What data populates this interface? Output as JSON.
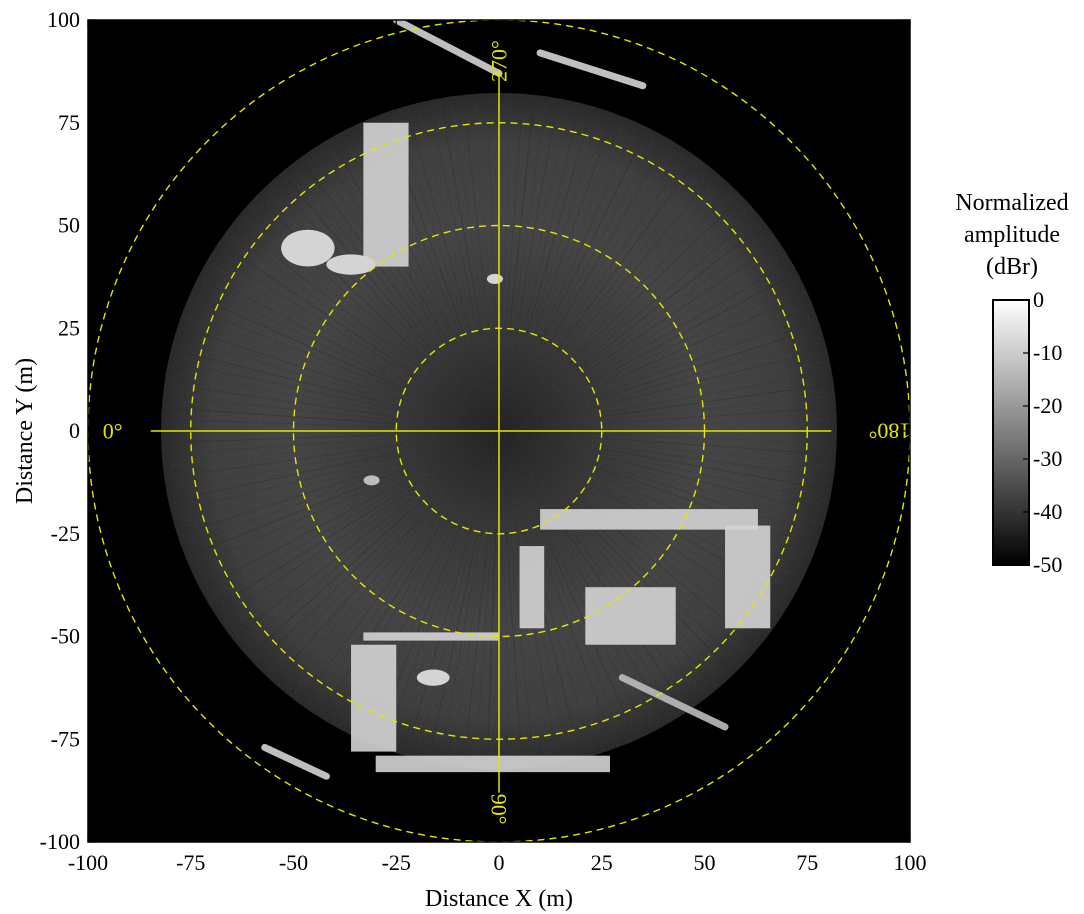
{
  "chart_data": {
    "type": "heatmap",
    "description_kind": "polar sonar intensity image in cartesian axes",
    "xlabel": "Distance X (m)",
    "ylabel": "Distance Y (m)",
    "xlim": [
      -100,
      100
    ],
    "ylim": [
      -100,
      100
    ],
    "x_ticks": [
      -100,
      -75,
      -50,
      -25,
      0,
      25,
      50,
      75,
      100
    ],
    "y_ticks": [
      -100,
      -75,
      -50,
      -25,
      0,
      25,
      50,
      75,
      100
    ],
    "x_tick_labels": [
      "-100",
      "-75",
      "-50",
      "-25",
      "0",
      "25",
      "50",
      "75",
      "100"
    ],
    "y_tick_labels": [
      "-100",
      "-75",
      "-50",
      "-25",
      "0",
      "25",
      "50",
      "75",
      "100"
    ],
    "range_rings_m": [
      25,
      50,
      75,
      100
    ],
    "angle_labels": [
      {
        "text": "0°",
        "angle_deg": 0,
        "rotation": 0
      },
      {
        "text": "90°",
        "angle_deg": 90,
        "rotation": 90
      },
      {
        "text": "180°",
        "angle_deg": 180,
        "rotation": 180
      },
      {
        "text": "270°",
        "angle_deg": 270,
        "rotation": 270
      }
    ],
    "overlay_color": "#e6e600",
    "background_color": "#000000",
    "colorbar": {
      "title": [
        "Normalized",
        "amplitude",
        "(dBr)"
      ],
      "range": [
        -50,
        0
      ],
      "ticks": [
        0,
        -10,
        -20,
        -30,
        -40,
        -50
      ],
      "tick_labels": [
        "0",
        "-10",
        "-20",
        "-30",
        "-40",
        "-50"
      ],
      "colormap": "gray"
    },
    "bright_features": [
      {
        "shape": "arc",
        "x": [
          -25,
          0
        ],
        "y": [
          100,
          87
        ],
        "amplitude_dbr": -5
      },
      {
        "shape": "arc",
        "x": [
          10,
          35
        ],
        "y": [
          92,
          84
        ],
        "amplitude_dbr": -5
      },
      {
        "shape": "block",
        "x": [
          -33,
          -22
        ],
        "y": [
          40,
          75
        ],
        "amplitude_dbr": -5
      },
      {
        "shape": "blob",
        "x": [
          -53,
          -40
        ],
        "y": [
          48,
          41
        ],
        "amplitude_dbr": -5
      },
      {
        "shape": "blob",
        "x": [
          -42,
          -30
        ],
        "y": [
          42,
          39
        ],
        "amplitude_dbr": -5
      },
      {
        "shape": "dot",
        "x": [
          -1,
          -1
        ],
        "y": [
          37,
          37
        ],
        "amplitude_dbr": -5
      },
      {
        "shape": "dot",
        "x": [
          -31,
          -31
        ],
        "y": [
          -12,
          -12
        ],
        "amplitude_dbr": -10
      },
      {
        "shape": "bar",
        "x": [
          -33,
          0
        ],
        "y": [
          -49,
          -51
        ],
        "amplitude_dbr": -5
      },
      {
        "shape": "bar",
        "x": [
          -30,
          27
        ],
        "y": [
          -79,
          -83
        ],
        "amplitude_dbr": -5
      },
      {
        "shape": "block",
        "x": [
          -36,
          -25
        ],
        "y": [
          -52,
          -78
        ],
        "amplitude_dbr": -5
      },
      {
        "shape": "block",
        "x": [
          5,
          11
        ],
        "y": [
          -28,
          -48
        ],
        "amplitude_dbr": -5
      },
      {
        "shape": "bar",
        "x": [
          10,
          63
        ],
        "y": [
          -19,
          -24
        ],
        "amplitude_dbr": -5
      },
      {
        "shape": "block",
        "x": [
          55,
          66
        ],
        "y": [
          -23,
          -48
        ],
        "amplitude_dbr": -5
      },
      {
        "shape": "block",
        "x": [
          21,
          43
        ],
        "y": [
          -38,
          -52
        ],
        "amplitude_dbr": -5
      },
      {
        "shape": "blob",
        "x": [
          -20,
          -12
        ],
        "y": [
          -59,
          -61
        ],
        "amplitude_dbr": -5
      },
      {
        "shape": "arc",
        "x": [
          -57,
          -42
        ],
        "y": [
          -77,
          -84
        ],
        "amplitude_dbr": -5
      },
      {
        "shape": "arc",
        "x": [
          30,
          55
        ],
        "y": [
          -60,
          -72
        ],
        "amplitude_dbr": -10
      }
    ]
  }
}
